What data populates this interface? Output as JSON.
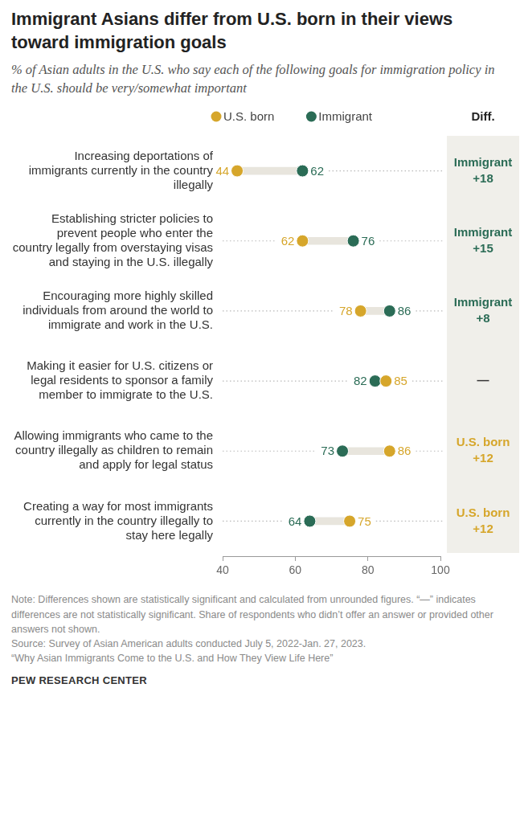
{
  "chart_data": {
    "type": "dumbbell",
    "title": "Immigrant Asians differ from U.S. born in their views toward immigration goals",
    "subtitle": "% of Asian adults in the U.S. who say each of the following goals for immigration policy in the U.S. should be very/somewhat important",
    "categories": [
      [
        "Increasing deportations of",
        "immigrants currently in the country",
        "illegally"
      ],
      [
        "Establishing stricter policies to",
        "prevent people who enter the",
        "country legally from overstaying visas",
        "and staying in the U.S. illegally"
      ],
      [
        "Encouraging more highly skilled",
        "individuals from around the world to",
        "immigrate and work in the U.S."
      ],
      [
        "Making it easier for U.S. citizens or",
        "legal residents to sponsor a family",
        "member to immigrate to the U.S."
      ],
      [
        "Allowing immigrants who came to the",
        "country illegally as children to remain",
        "and apply for legal status"
      ],
      [
        "Creating a way for most immigrants",
        "currently in the country illegally to",
        "stay here legally"
      ]
    ],
    "series": [
      {
        "name": "U.S. born",
        "color": "#d6a62b",
        "values": [
          44,
          62,
          78,
          85,
          86,
          75
        ]
      },
      {
        "name": "Immigrant",
        "color": "#2b6c56",
        "values": [
          62,
          76,
          86,
          82,
          73,
          64
        ]
      }
    ],
    "xlim": [
      40,
      100
    ],
    "xticks": [
      40,
      60,
      80,
      100
    ],
    "orientation": "horizontal",
    "grid": false,
    "legend": "top",
    "data_labels": true,
    "differences_title": "Diff.",
    "differences": [
      {
        "group": "Immigrant",
        "value": 18,
        "value_label": "+18"
      },
      {
        "group": "Immigrant",
        "value": 15,
        "value_label": "+15"
      },
      {
        "group": "Immigrant",
        "value": 8,
        "value_label": "+8"
      },
      {
        "group": null,
        "value": null,
        "value_label": "—"
      },
      {
        "group": "U.S. born",
        "value": 12,
        "value_label": "+12"
      },
      {
        "group": "U.S. born",
        "value": 12,
        "value_label": "+12"
      }
    ],
    "note": "Note: Differences shown are statistically significant and calculated from unrounded figures. “—” indicates differences are not statistically significant. Share of respondents who didn’t offer an answer or provided other answers not shown.",
    "source": "Source: Survey of Asian American adults conducted July 5, 2022-Jan. 27, 2023.",
    "report": "“Why Asian Immigrants Come to the U.S. and How They View Life Here”",
    "credit": "PEW RESEARCH CENTER"
  }
}
